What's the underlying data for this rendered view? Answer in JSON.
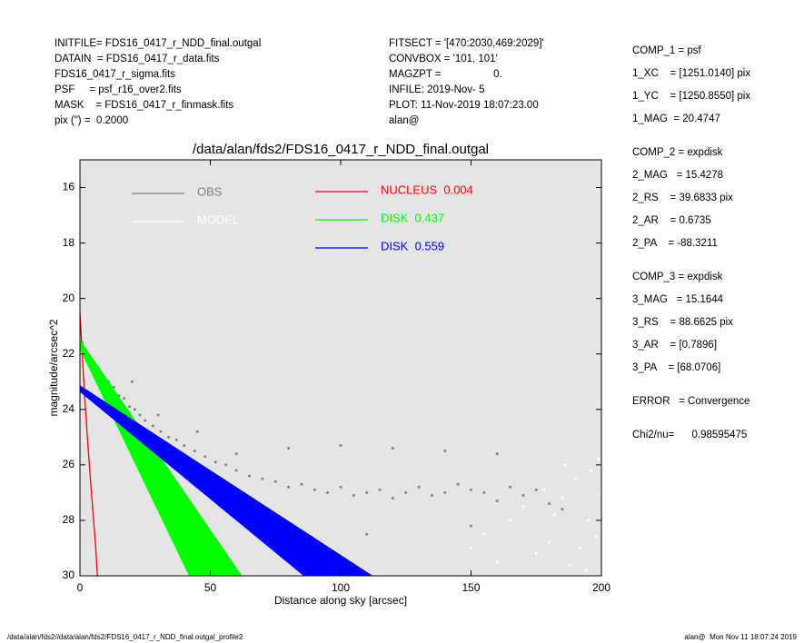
{
  "header": {
    "left": [
      "INITFILE= FDS16_0417_r_NDD_final.outgal",
      "DATAIN  = FDS16_0417_r_data.fits",
      "FDS16_0417_r_sigma.fits",
      "PSF     = psf_r16_over2.fits",
      "MASK    = FDS16_0417_r_finmask.fits",
      "pix (\") =  0.2000"
    ],
    "middle": [
      "FITSECT = '[470:2030,469:2029]'",
      "CONVBOX = '101, 101'",
      "MAGZPT =                  0.",
      "INFILE: 2019-Nov- 5",
      "PLOT: 11-Nov-2019 18:07:23.00",
      "alan@"
    ]
  },
  "components": [
    [
      "COMP_1 = psf",
      "1_XC    = [1251.0140] pix",
      "1_YC    = [1250.8550] pix",
      "1_MAG  = 20.4747"
    ],
    [
      "COMP_2 = expdisk",
      "2_MAG   = 15.4278",
      "2_RS    = 39.6833 pix",
      "2_AR    = 0.6735",
      "2_PA    = -88.3211"
    ],
    [
      "COMP_3 = expdisk",
      "3_MAG   = 15.1644",
      "3_RS    = 88.6625 pix",
      "3_AR    = [0.7896]",
      "3_PA    = [68.0706]"
    ],
    [
      "ERROR   = Convergence"
    ],
    [
      "Chi2/nu=      0.98595475"
    ]
  ],
  "footer": {
    "left": "/data/alan/fds2//data/alan/fds2/FDS16_0417_r_NDD_final.outgal_profile2",
    "right": "alan@  Mon Nov 11 18:07:24 2019"
  },
  "chart_data": {
    "type": "scatter",
    "title": "/data/alan/fds2/FDS16_0417_r_NDD_final.outgal",
    "x_label": "Distance along sky [arcsec]",
    "y_label": "magnitude/arcsec^2",
    "xlim": [
      0,
      200
    ],
    "xticks": [
      0,
      50,
      100,
      150,
      200
    ],
    "ylim": [
      30,
      15
    ],
    "yticks": [
      16,
      18,
      20,
      22,
      24,
      26,
      28,
      30
    ],
    "series": [
      {
        "name": "OBS",
        "color": "#808080",
        "style": "points",
        "x": [
          1,
          3,
          5,
          7,
          9,
          11,
          13,
          15,
          17,
          19,
          21,
          23,
          25,
          28,
          31,
          34,
          37,
          40,
          44,
          48,
          52,
          56,
          60,
          65,
          70,
          75,
          80,
          85,
          90,
          95,
          100,
          105,
          110,
          115,
          120,
          125,
          130,
          135,
          140,
          145,
          150,
          155,
          160,
          165,
          170,
          175,
          180,
          185,
          20,
          30,
          45,
          60,
          80,
          100,
          120,
          140,
          160,
          70,
          110,
          150
        ],
        "values": [
          21.6,
          22.0,
          22.3,
          22.5,
          22.8,
          23.0,
          23.2,
          23.5,
          23.6,
          23.9,
          24.0,
          24.2,
          24.4,
          24.6,
          24.8,
          25.0,
          25.1,
          25.3,
          25.5,
          25.7,
          25.9,
          26.0,
          26.2,
          26.4,
          26.5,
          26.6,
          26.8,
          26.7,
          26.9,
          27.0,
          26.8,
          27.1,
          27.0,
          26.9,
          27.2,
          27.0,
          26.8,
          27.1,
          27.0,
          26.7,
          26.9,
          27.0,
          27.3,
          26.8,
          27.1,
          26.9,
          27.4,
          27.6,
          23.0,
          24.2,
          24.8,
          25.6,
          25.4,
          25.3,
          25.4,
          25.5,
          25.6,
          28.0,
          28.5,
          28.2
        ]
      },
      {
        "name": "MODEL",
        "color": "#ffffff",
        "style": "points",
        "x": [
          150,
          155,
          160,
          165,
          170,
          175,
          180,
          185,
          190,
          195,
          200,
          188,
          192,
          196,
          198,
          182,
          178,
          186,
          194,
          199
        ],
        "values": [
          29.0,
          28.5,
          29.5,
          28.0,
          27.5,
          29.2,
          28.8,
          27.2,
          26.5,
          28.0,
          27.0,
          29.6,
          29.0,
          26.2,
          28.6,
          27.8,
          26.9,
          26.0,
          29.8,
          25.8
        ]
      },
      {
        "name": "NUCLEUS  0.004",
        "color": "#ff0000",
        "style": "line",
        "x": [
          0,
          1,
          2,
          3,
          4,
          5,
          6,
          6.7
        ],
        "values": [
          20.5,
          22.2,
          23.8,
          25.2,
          26.5,
          27.7,
          28.9,
          30
        ]
      },
      {
        "name": "DISK  0.437",
        "color": "#00ff00",
        "style": "band",
        "x": [
          0,
          62,
          42,
          0
        ],
        "values": [
          21.5,
          30,
          30,
          21.8
        ]
      },
      {
        "name": "DISK  0.559",
        "color": "#0000ff",
        "style": "band",
        "x": [
          0,
          112,
          86,
          0
        ],
        "values": [
          23.15,
          30,
          30,
          23.35
        ]
      }
    ]
  }
}
